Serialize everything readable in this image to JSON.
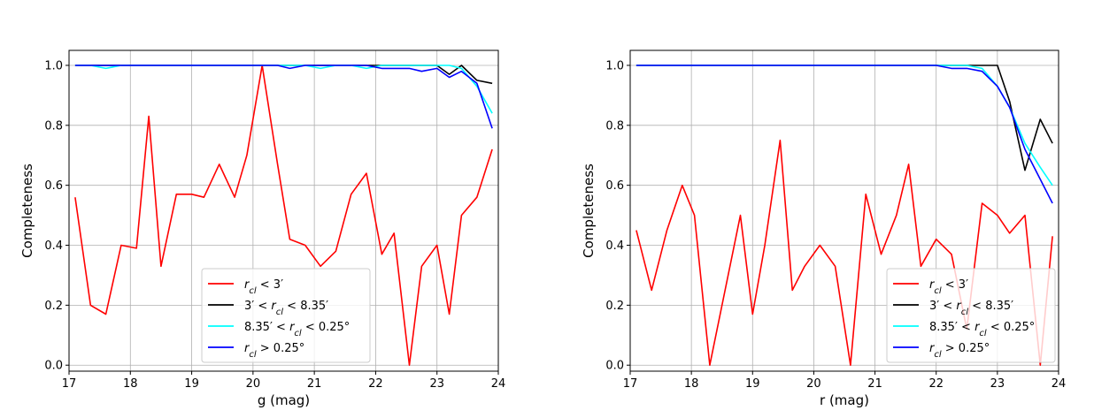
{
  "chart_data": [
    {
      "type": "line",
      "xlabel": "g (mag)",
      "ylabel": "Completeness",
      "xlim": [
        17,
        24
      ],
      "ylim": [
        -0.02,
        1.05
      ],
      "xticks": [
        "17",
        "18",
        "19",
        "20",
        "21",
        "22",
        "23",
        "24"
      ],
      "yticks": [
        "0.0",
        "0.2",
        "0.4",
        "0.6",
        "0.8",
        "1.0"
      ],
      "grid": true,
      "legend_position": "lower-center",
      "x": [
        17.1,
        17.35,
        17.6,
        17.85,
        18.1,
        18.3,
        18.5,
        18.75,
        19.0,
        19.2,
        19.45,
        19.7,
        19.9,
        20.15,
        20.4,
        20.6,
        20.85,
        21.1,
        21.35,
        21.6,
        21.85,
        22.1,
        22.3,
        22.55,
        22.75,
        23.0,
        23.2,
        23.4,
        23.65,
        23.9
      ],
      "series": [
        {
          "name": "r_cl < 3′",
          "color": "#ff0000",
          "values": [
            0.56,
            0.2,
            0.17,
            0.4,
            0.39,
            0.83,
            0.33,
            0.57,
            0.57,
            0.56,
            0.67,
            0.56,
            0.7,
            1.0,
            0.67,
            0.42,
            0.4,
            0.33,
            0.38,
            0.57,
            0.64,
            0.37,
            0.44,
            0.0,
            0.33,
            0.4,
            0.17,
            0.5,
            0.56,
            0.72
          ]
        },
        {
          "name": "3′ < r_cl < 8.35′",
          "color": "#000000",
          "values": [
            1.0,
            1.0,
            1.0,
            1.0,
            1.0,
            1.0,
            1.0,
            1.0,
            1.0,
            1.0,
            1.0,
            1.0,
            1.0,
            1.0,
            1.0,
            1.0,
            1.0,
            1.0,
            1.0,
            1.0,
            1.0,
            1.0,
            1.0,
            1.0,
            1.0,
            1.0,
            0.97,
            1.0,
            0.95,
            0.94
          ]
        },
        {
          "name": "8.35′ < r_cl < 0.25°",
          "color": "#00ffff",
          "values": [
            1.0,
            1.0,
            0.99,
            1.0,
            1.0,
            1.0,
            1.0,
            1.0,
            1.0,
            1.0,
            1.0,
            1.0,
            1.0,
            1.0,
            1.0,
            1.0,
            1.0,
            0.99,
            1.0,
            1.0,
            0.99,
            1.0,
            1.0,
            1.0,
            1.0,
            1.0,
            1.0,
            0.99,
            0.93,
            0.84
          ]
        },
        {
          "name": "r_cl > 0.25°",
          "color": "#0000ff",
          "values": [
            1.0,
            1.0,
            1.0,
            1.0,
            1.0,
            1.0,
            1.0,
            1.0,
            1.0,
            1.0,
            1.0,
            1.0,
            1.0,
            1.0,
            1.0,
            0.99,
            1.0,
            1.0,
            1.0,
            1.0,
            1.0,
            0.99,
            0.99,
            0.99,
            0.98,
            0.99,
            0.96,
            0.98,
            0.94,
            0.79
          ]
        }
      ]
    },
    {
      "type": "line",
      "xlabel": "r (mag)",
      "ylabel": "Completeness",
      "xlim": [
        17,
        24
      ],
      "ylim": [
        -0.02,
        1.05
      ],
      "xticks": [
        "17",
        "18",
        "19",
        "20",
        "21",
        "22",
        "23",
        "24"
      ],
      "yticks": [
        "0.0",
        "0.2",
        "0.4",
        "0.6",
        "0.8",
        "1.0"
      ],
      "grid": true,
      "legend_position": "lower-right",
      "x": [
        17.1,
        17.35,
        17.6,
        17.85,
        18.05,
        18.3,
        18.55,
        18.8,
        19.0,
        19.2,
        19.45,
        19.65,
        19.85,
        20.1,
        20.35,
        20.6,
        20.85,
        21.1,
        21.35,
        21.55,
        21.75,
        22.0,
        22.25,
        22.5,
        22.75,
        23.0,
        23.2,
        23.45,
        23.7,
        23.9
      ],
      "series": [
        {
          "name": "r_cl < 3′",
          "color": "#ff0000",
          "values": [
            0.45,
            0.25,
            0.45,
            0.6,
            0.5,
            0.0,
            0.25,
            0.5,
            0.17,
            0.4,
            0.75,
            0.25,
            0.33,
            0.4,
            0.33,
            0.0,
            0.57,
            0.37,
            0.5,
            0.67,
            0.33,
            0.42,
            0.37,
            0.12,
            0.54,
            0.5,
            0.44,
            0.5,
            0.0,
            0.43
          ]
        },
        {
          "name": "3′ < r_cl < 8.35′",
          "color": "#000000",
          "values": [
            1.0,
            1.0,
            1.0,
            1.0,
            1.0,
            1.0,
            1.0,
            1.0,
            1.0,
            1.0,
            1.0,
            1.0,
            1.0,
            1.0,
            1.0,
            1.0,
            1.0,
            1.0,
            1.0,
            1.0,
            1.0,
            1.0,
            1.0,
            1.0,
            1.0,
            1.0,
            0.88,
            0.65,
            0.82,
            0.74
          ]
        },
        {
          "name": "8.35′ < r_cl < 0.25°",
          "color": "#00ffff",
          "values": [
            1.0,
            1.0,
            1.0,
            1.0,
            1.0,
            1.0,
            1.0,
            1.0,
            1.0,
            1.0,
            1.0,
            1.0,
            1.0,
            1.0,
            1.0,
            1.0,
            1.0,
            1.0,
            1.0,
            1.0,
            1.0,
            1.0,
            1.0,
            1.0,
            0.99,
            0.93,
            0.86,
            0.74,
            0.66,
            0.6
          ]
        },
        {
          "name": "r_cl > 0.25°",
          "color": "#0000ff",
          "values": [
            1.0,
            1.0,
            1.0,
            1.0,
            1.0,
            1.0,
            1.0,
            1.0,
            1.0,
            1.0,
            1.0,
            1.0,
            1.0,
            1.0,
            1.0,
            1.0,
            1.0,
            1.0,
            1.0,
            1.0,
            1.0,
            1.0,
            0.99,
            0.99,
            0.98,
            0.93,
            0.86,
            0.72,
            0.62,
            0.54
          ]
        }
      ]
    }
  ]
}
